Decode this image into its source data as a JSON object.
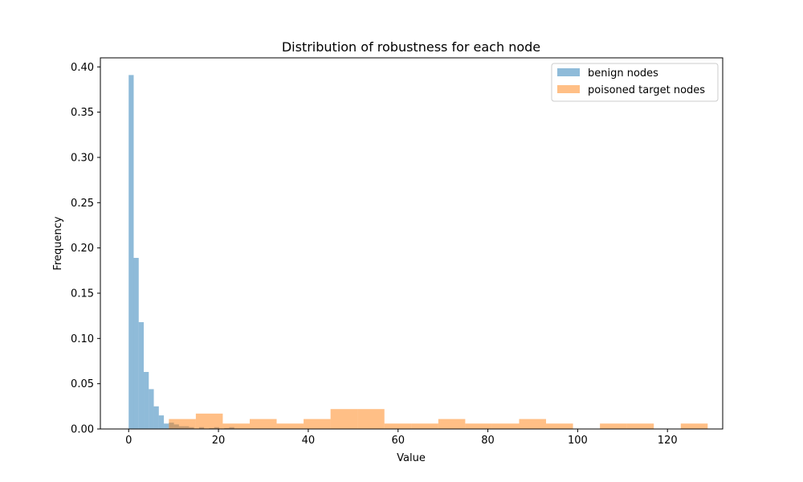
{
  "chart_data": {
    "type": "bar",
    "title": "Distribution of robustness for each node",
    "xlabel": "Value",
    "ylabel": "Frequency",
    "xlim": [
      -6.3,
      132.3
    ],
    "ylim": [
      0,
      0.41
    ],
    "xticks": [
      0,
      20,
      40,
      60,
      80,
      100,
      120
    ],
    "yticks": [
      0.0,
      0.05,
      0.1,
      0.15,
      0.2,
      0.25,
      0.3,
      0.35,
      0.4
    ],
    "xtick_labels": [
      "0",
      "20",
      "40",
      "60",
      "80",
      "100",
      "120"
    ],
    "ytick_labels": [
      "0.00",
      "0.05",
      "0.10",
      "0.15",
      "0.20",
      "0.25",
      "0.30",
      "0.35",
      "0.40"
    ],
    "grid": false,
    "legend_position": "top-right",
    "series": [
      {
        "name": "benign nodes",
        "color": "#1f77b4",
        "alpha": 0.5,
        "bins": [
          {
            "x0": 0,
            "x1": 1.12,
            "y": 0.391
          },
          {
            "x0": 1.12,
            "x1": 2.24,
            "y": 0.189
          },
          {
            "x0": 2.24,
            "x1": 3.36,
            "y": 0.118
          },
          {
            "x0": 3.36,
            "x1": 4.48,
            "y": 0.063
          },
          {
            "x0": 4.48,
            "x1": 5.6,
            "y": 0.044
          },
          {
            "x0": 5.6,
            "x1": 6.72,
            "y": 0.025
          },
          {
            "x0": 6.72,
            "x1": 7.84,
            "y": 0.015
          },
          {
            "x0": 7.84,
            "x1": 8.96,
            "y": 0.006
          },
          {
            "x0": 8.96,
            "x1": 10.08,
            "y": 0.007
          },
          {
            "x0": 10.08,
            "x1": 11.2,
            "y": 0.005
          },
          {
            "x0": 11.2,
            "x1": 12.32,
            "y": 0.003
          },
          {
            "x0": 12.32,
            "x1": 13.44,
            "y": 0.003
          },
          {
            "x0": 13.44,
            "x1": 14.56,
            "y": 0.002
          },
          {
            "x0": 15.68,
            "x1": 16.8,
            "y": 0.002
          },
          {
            "x0": 17.92,
            "x1": 19.04,
            "y": 0.001
          },
          {
            "x0": 19.04,
            "x1": 20.16,
            "y": 0.002
          },
          {
            "x0": 21.28,
            "x1": 22.4,
            "y": 0.001
          },
          {
            "x0": 22.4,
            "x1": 23.52,
            "y": 0.002
          }
        ]
      },
      {
        "name": "poisoned target nodes",
        "color": "#ff7f0e",
        "alpha": 0.5,
        "bins": [
          {
            "x0": 8.96,
            "x1": 14.96,
            "y": 0.011
          },
          {
            "x0": 14.96,
            "x1": 20.96,
            "y": 0.017
          },
          {
            "x0": 20.96,
            "x1": 26.96,
            "y": 0.006
          },
          {
            "x0": 26.96,
            "x1": 32.96,
            "y": 0.011
          },
          {
            "x0": 32.96,
            "x1": 38.96,
            "y": 0.006
          },
          {
            "x0": 38.96,
            "x1": 44.96,
            "y": 0.011
          },
          {
            "x0": 44.96,
            "x1": 50.96,
            "y": 0.022
          },
          {
            "x0": 50.96,
            "x1": 56.96,
            "y": 0.022
          },
          {
            "x0": 56.96,
            "x1": 62.96,
            "y": 0.006
          },
          {
            "x0": 62.96,
            "x1": 68.96,
            "y": 0.006
          },
          {
            "x0": 68.96,
            "x1": 74.96,
            "y": 0.011
          },
          {
            "x0": 74.96,
            "x1": 80.96,
            "y": 0.006
          },
          {
            "x0": 80.96,
            "x1": 86.96,
            "y": 0.006
          },
          {
            "x0": 86.96,
            "x1": 92.96,
            "y": 0.011
          },
          {
            "x0": 92.96,
            "x1": 98.96,
            "y": 0.006
          },
          {
            "x0": 104.96,
            "x1": 110.96,
            "y": 0.006
          },
          {
            "x0": 110.96,
            "x1": 116.96,
            "y": 0.006
          },
          {
            "x0": 122.96,
            "x1": 128.96,
            "y": 0.006
          }
        ]
      }
    ]
  }
}
